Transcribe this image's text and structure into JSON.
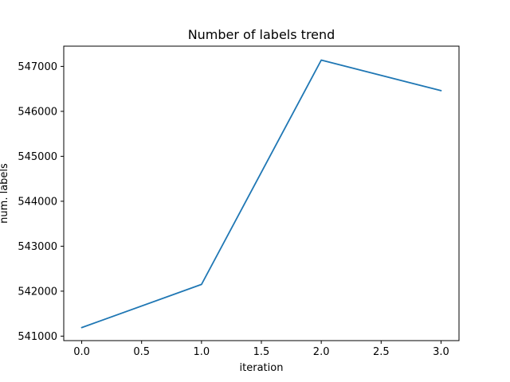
{
  "chart_data": {
    "type": "line",
    "title": "Number of labels trend",
    "xlabel": "iteration",
    "ylabel": "num. labels",
    "x": [
      0,
      1,
      2,
      3
    ],
    "series": [
      {
        "values": [
          541190,
          542150,
          547140,
          546460
        ],
        "color": "#1f77b4"
      }
    ],
    "xlim": [
      -0.15,
      3.15
    ],
    "ylim": [
      540900,
      547450
    ],
    "x_ticks": [
      0,
      0.5,
      1,
      1.5,
      2,
      2.5,
      3
    ],
    "x_tick_labels": [
      "0.0",
      "0.5",
      "1.0",
      "1.5",
      "2.0",
      "2.5",
      "3.0"
    ],
    "y_ticks": [
      541000,
      542000,
      543000,
      544000,
      545000,
      546000,
      547000
    ],
    "y_tick_labels": [
      "541000",
      "542000",
      "543000",
      "544000",
      "545000",
      "546000",
      "547000"
    ],
    "grid": false,
    "legend": "none"
  }
}
